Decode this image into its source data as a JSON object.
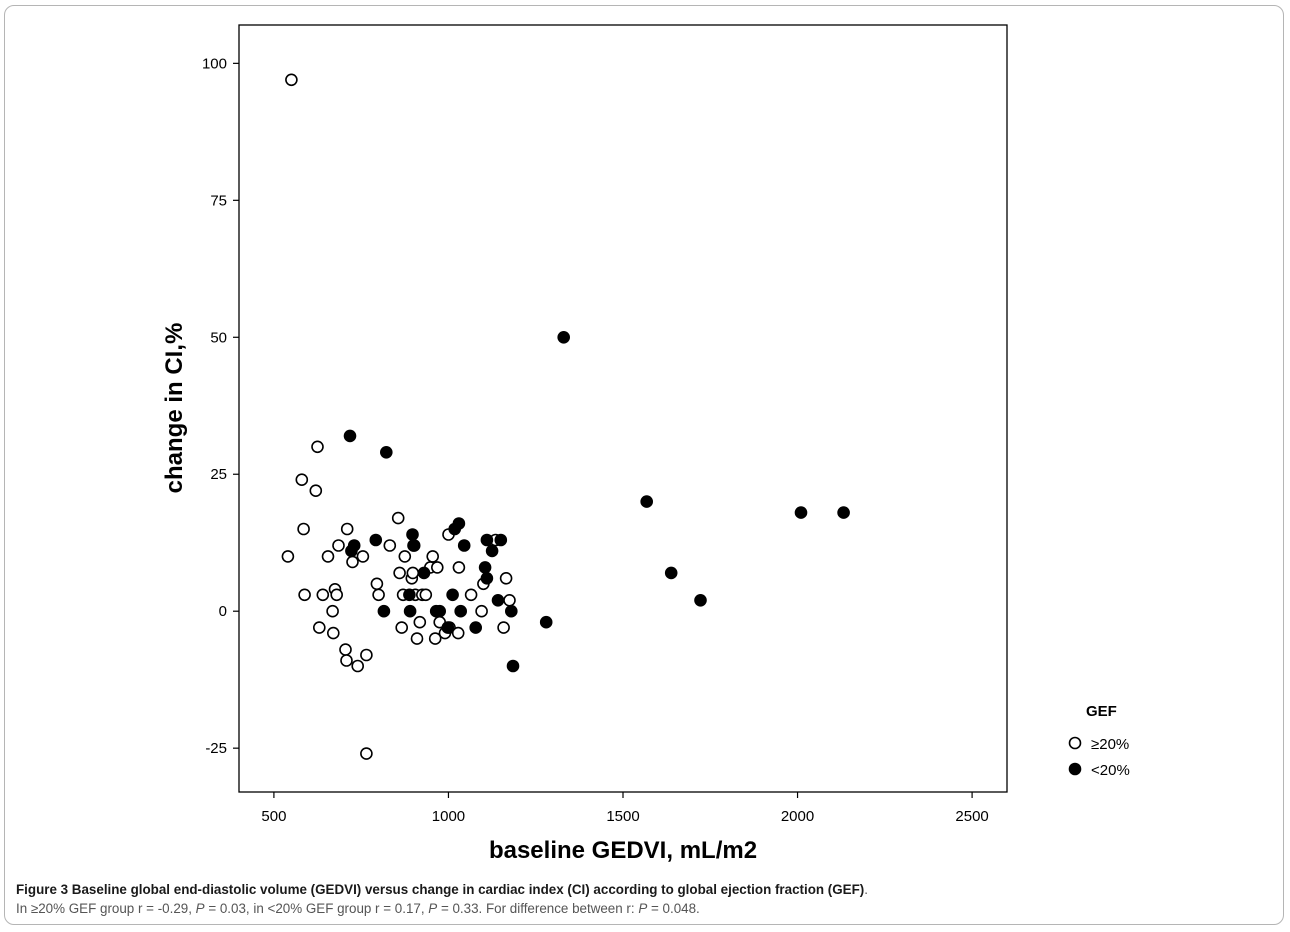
{
  "chart_data": {
    "type": "scatter",
    "xlabel": "baseline GEDVI, mL/m2",
    "ylabel": "change in CI,%",
    "xlim": [
      400,
      2600
    ],
    "ylim": [
      -33,
      107
    ],
    "xticks": [
      500,
      1000,
      1500,
      2000,
      2500
    ],
    "yticks": [
      -25,
      0,
      25,
      50,
      75,
      100
    ],
    "grid": false,
    "legend": {
      "title": "GEF",
      "position": "right, below the plot"
    },
    "series": [
      {
        "name": "≥20%",
        "marker": "open-circle",
        "points": [
          [
            550,
            97
          ],
          [
            540,
            10
          ],
          [
            580,
            24
          ],
          [
            585,
            15
          ],
          [
            588,
            3
          ],
          [
            620,
            22
          ],
          [
            625,
            30
          ],
          [
            630,
            -3
          ],
          [
            640,
            3
          ],
          [
            655,
            10
          ],
          [
            668,
            0
          ],
          [
            670,
            -4
          ],
          [
            675,
            4
          ],
          [
            680,
            3
          ],
          [
            685,
            12
          ],
          [
            705,
            -7
          ],
          [
            708,
            -9
          ],
          [
            710,
            15
          ],
          [
            725,
            9
          ],
          [
            740,
            -10
          ],
          [
            755,
            10
          ],
          [
            765,
            -8
          ],
          [
            765,
            -26
          ],
          [
            795,
            5
          ],
          [
            800,
            3
          ],
          [
            832,
            12
          ],
          [
            856,
            17
          ],
          [
            860,
            7
          ],
          [
            866,
            -3
          ],
          [
            870,
            3
          ],
          [
            875,
            10
          ],
          [
            895,
            6
          ],
          [
            898,
            7
          ],
          [
            902,
            12
          ],
          [
            905,
            3
          ],
          [
            910,
            -5
          ],
          [
            918,
            -2
          ],
          [
            925,
            3
          ],
          [
            935,
            3
          ],
          [
            948,
            8
          ],
          [
            955,
            10
          ],
          [
            962,
            -5
          ],
          [
            968,
            8
          ],
          [
            975,
            -2
          ],
          [
            990,
            -4
          ],
          [
            1000,
            14
          ],
          [
            1003,
            -3
          ],
          [
            1028,
            -4
          ],
          [
            1030,
            8
          ],
          [
            1065,
            3
          ],
          [
            1095,
            0
          ],
          [
            1100,
            5
          ],
          [
            1135,
            13
          ],
          [
            1158,
            -3
          ],
          [
            1165,
            6
          ],
          [
            1175,
            2
          ]
        ]
      },
      {
        "name": "<20%",
        "marker": "filled-circle",
        "points": [
          [
            718,
            32
          ],
          [
            722,
            11
          ],
          [
            730,
            12
          ],
          [
            792,
            13
          ],
          [
            815,
            0
          ],
          [
            822,
            29
          ],
          [
            888,
            3
          ],
          [
            890,
            0
          ],
          [
            897,
            14
          ],
          [
            900,
            12
          ],
          [
            930,
            7
          ],
          [
            965,
            0
          ],
          [
            975,
            0
          ],
          [
            998,
            -3
          ],
          [
            1012,
            3
          ],
          [
            1018,
            15
          ],
          [
            1030,
            16
          ],
          [
            1035,
            0
          ],
          [
            1045,
            12
          ],
          [
            1078,
            -3
          ],
          [
            1105,
            8
          ],
          [
            1110,
            13
          ],
          [
            1110,
            6
          ],
          [
            1125,
            11
          ],
          [
            1142,
            2
          ],
          [
            1150,
            13
          ],
          [
            1180,
            0
          ],
          [
            1185,
            -10
          ],
          [
            1280,
            -2
          ],
          [
            1330,
            50
          ],
          [
            1568,
            20
          ],
          [
            1638,
            7
          ],
          [
            1722,
            2
          ],
          [
            2010,
            18
          ],
          [
            2132,
            18
          ]
        ]
      }
    ]
  },
  "caption": {
    "lead": "Figure 3 Baseline global end-diastolic volume (GEDVI) versus change in cardiac index (CI) according to global ejection fraction (GEF)",
    "lead_end": ".",
    "l2_a": "In ≥20% GEF group r = -0.29, ",
    "p1": "P",
    "l2_b": " = 0.03, in <20% GEF group r = 0.17, ",
    "p2": "P",
    "l2_c": " = 0.33. For difference between r: ",
    "p3": "P",
    "l2_d": " = 0.048."
  }
}
